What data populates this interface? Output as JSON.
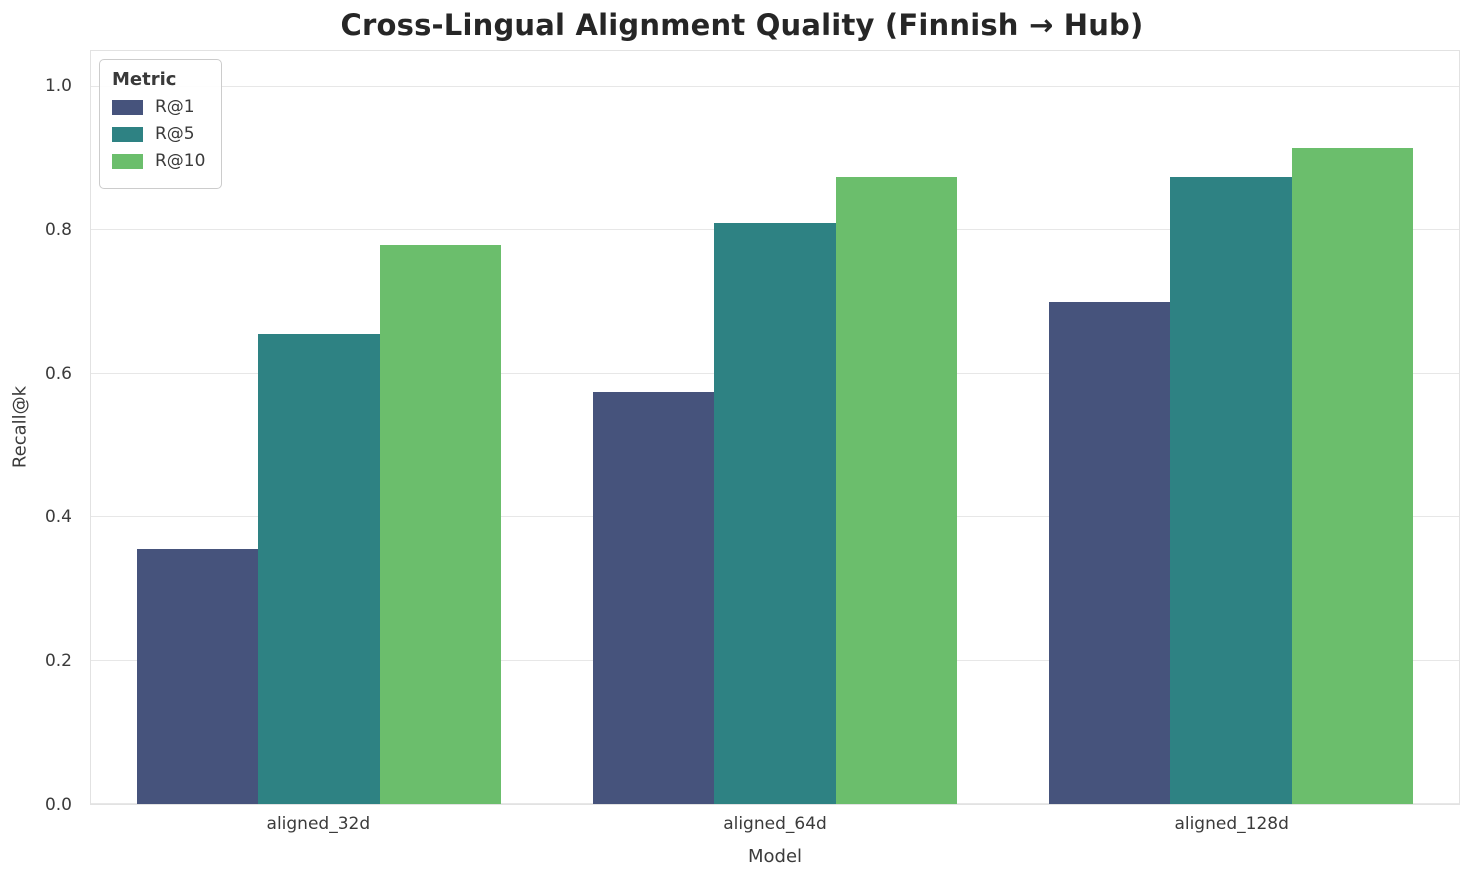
{
  "chart_data": {
    "type": "bar",
    "title": "Cross-Lingual Alignment Quality (Finnish → Hub)",
    "xlabel": "Model",
    "ylabel": "Recall@k",
    "categories": [
      "aligned_32d",
      "aligned_64d",
      "aligned_128d"
    ],
    "series": [
      {
        "name": "R@1",
        "color": "#46537c",
        "values": [
          0.355,
          0.575,
          0.7
        ]
      },
      {
        "name": "R@5",
        "color": "#2e8283",
        "values": [
          0.655,
          0.81,
          0.875
        ]
      },
      {
        "name": "R@10",
        "color": "#6bbe6c",
        "values": [
          0.78,
          0.875,
          0.915
        ]
      }
    ],
    "ylim": [
      0,
      1.05
    ],
    "yticks": [
      0.0,
      0.2,
      0.4,
      0.6,
      0.8,
      1.0
    ],
    "legend_title": "Metric",
    "legend_position": "upper left",
    "grid": true,
    "background_color": "#ffffff",
    "gridline_color": "#e7e7e7"
  }
}
